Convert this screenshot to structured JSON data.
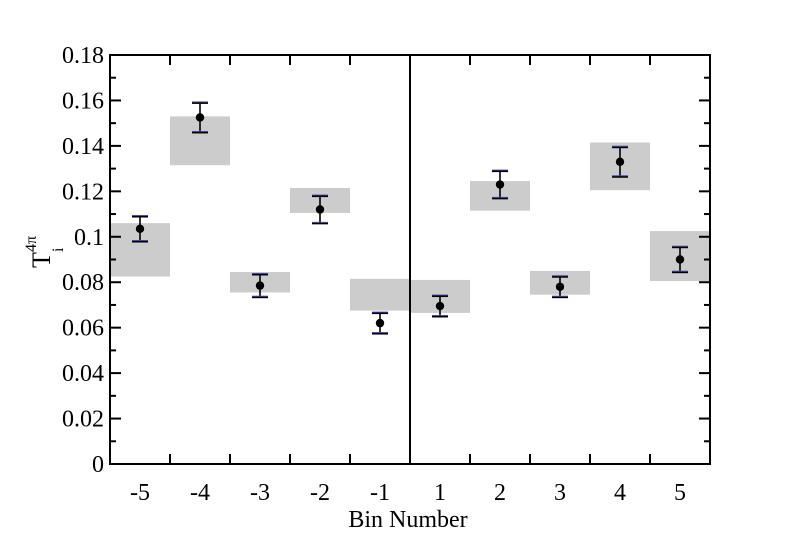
{
  "chart_data": {
    "type": "scatter",
    "categories": [
      "-5",
      "-4",
      "-3",
      "-2",
      "-1",
      "1",
      "2",
      "3",
      "4",
      "5"
    ],
    "values": [
      0.1035,
      0.1525,
      0.0785,
      0.112,
      0.062,
      0.0695,
      0.123,
      0.078,
      0.133,
      0.09
    ],
    "stat_error": [
      0.0055,
      0.0065,
      0.005,
      0.006,
      0.0045,
      0.0045,
      0.006,
      0.0045,
      0.0065,
      0.0055
    ],
    "systematic_band": [
      [
        0.0825,
        0.106
      ],
      [
        0.1315,
        0.153
      ],
      [
        0.0755,
        0.0845
      ],
      [
        0.1105,
        0.1215
      ],
      [
        0.0675,
        0.0815
      ],
      [
        0.0665,
        0.081
      ],
      [
        0.1115,
        0.1245
      ],
      [
        0.0745,
        0.085
      ],
      [
        0.1205,
        0.1415
      ],
      [
        0.0805,
        0.1025
      ]
    ],
    "xlabel": "Bin Number",
    "ylabel": {
      "base": "T",
      "superscript": "4π",
      "subscript": "i"
    },
    "ylim": [
      0,
      0.18
    ],
    "yticks": [
      "0",
      "0.02",
      "0.04",
      "0.06",
      "0.08",
      "0.1",
      "0.12",
      "0.14",
      "0.16",
      "0.18"
    ],
    "grid": false,
    "legend": "none",
    "divider_between": [
      "-1",
      "1"
    ],
    "colors": {
      "band": "#cccccc",
      "point": "#000000",
      "error_bar": "#000000",
      "error_cap_edge": "#4a4ab8"
    }
  }
}
